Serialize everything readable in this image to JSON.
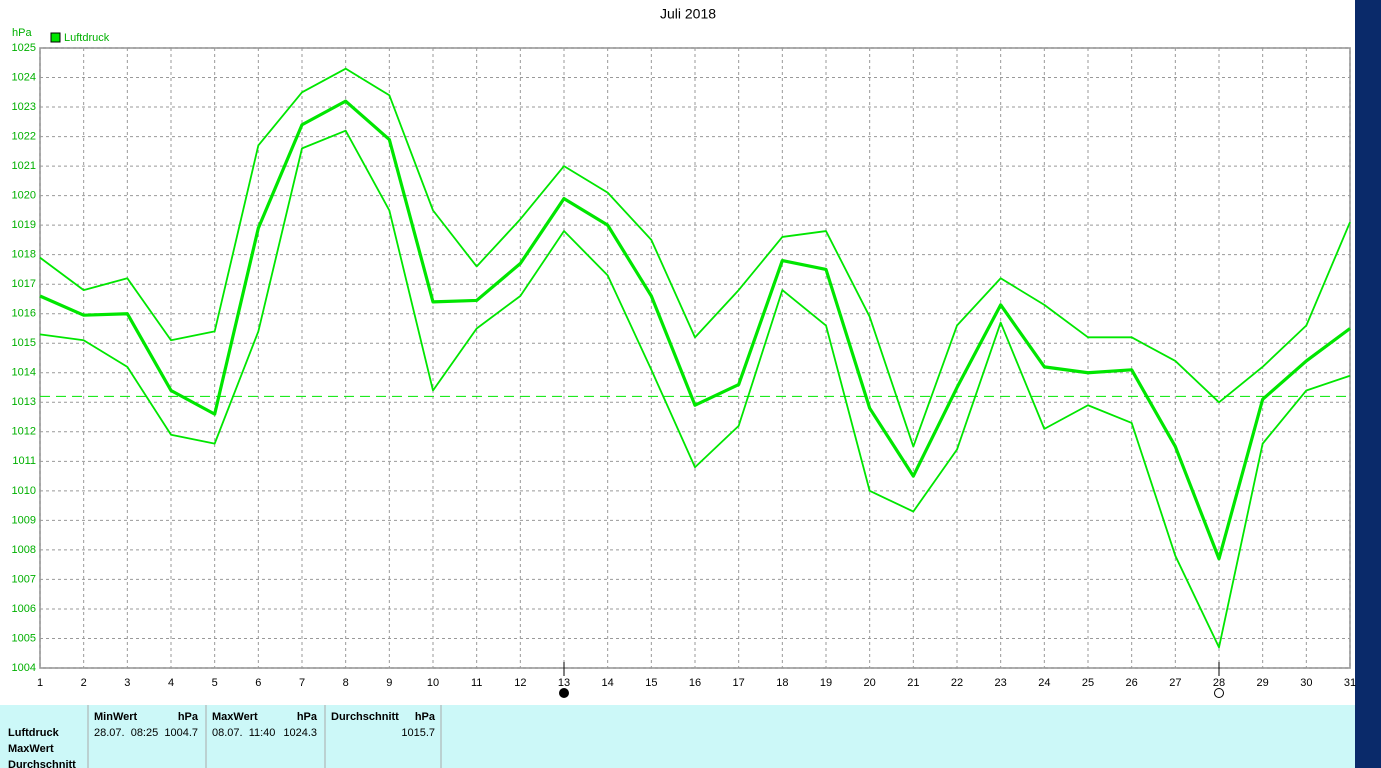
{
  "chart_data": {
    "type": "line",
    "title": "Juli 2018",
    "y_label": "hPa",
    "x": [
      1,
      2,
      3,
      4,
      5,
      6,
      7,
      8,
      9,
      10,
      11,
      12,
      13,
      14,
      15,
      16,
      17,
      18,
      19,
      20,
      21,
      22,
      23,
      24,
      25,
      26,
      27,
      28,
      29,
      30,
      31
    ],
    "xlim": [
      1,
      31
    ],
    "xticks": [
      1,
      2,
      3,
      4,
      5,
      6,
      7,
      8,
      9,
      10,
      11,
      12,
      13,
      14,
      15,
      16,
      17,
      18,
      19,
      20,
      21,
      22,
      23,
      24,
      25,
      26,
      27,
      28,
      29,
      30,
      31
    ],
    "ylim": [
      1004,
      1025
    ],
    "yticks": [
      1004,
      1005,
      1006,
      1007,
      1008,
      1009,
      1010,
      1011,
      1012,
      1013,
      1014,
      1015,
      1016,
      1017,
      1018,
      1019,
      1020,
      1021,
      1022,
      1023,
      1024,
      1025
    ],
    "grid": true,
    "series": [
      {
        "name": "Luftdruck",
        "color": "#00e600",
        "values": [
          1016.6,
          1015.95,
          1016.0,
          1013.4,
          1012.6,
          1018.9,
          1022.4,
          1023.2,
          1021.9,
          1016.4,
          1016.45,
          1017.7,
          1019.9,
          1019.0,
          1016.6,
          1012.9,
          1013.6,
          1017.8,
          1017.5,
          1012.8,
          1010.5,
          1013.5,
          1016.3,
          1014.2,
          1014.0,
          1014.1,
          1011.5,
          1007.7,
          1013.1,
          1014.4,
          1015.5
        ],
        "max": [
          1017.9,
          1016.8,
          1017.2,
          1015.1,
          1015.4,
          1021.7,
          1023.5,
          1024.3,
          1023.4,
          1019.5,
          1017.6,
          1019.2,
          1021.0,
          1020.1,
          1018.5,
          1015.2,
          1016.8,
          1018.6,
          1018.8,
          1015.9,
          1011.5,
          1015.6,
          1017.2,
          1016.3,
          1015.2,
          1015.2,
          1014.4,
          1013.0,
          1014.2,
          1015.6,
          1019.1
        ],
        "min": [
          1015.3,
          1015.1,
          1014.2,
          1011.9,
          1011.6,
          1015.4,
          1021.6,
          1022.2,
          1019.5,
          1013.4,
          1015.5,
          1016.6,
          1018.8,
          1017.3,
          1014.1,
          1010.8,
          1012.2,
          1016.8,
          1015.6,
          1010.0,
          1009.3,
          1011.4,
          1015.7,
          1012.1,
          1012.9,
          1012.3,
          1007.8,
          1004.7,
          1011.6,
          1013.4,
          1013.9
        ]
      }
    ],
    "reference_line": 1013.2,
    "moon_markers": [
      {
        "x": 13,
        "filled": true
      },
      {
        "x": 28,
        "filled": false
      }
    ]
  },
  "stats_table": {
    "row_labels": [
      "Luftdruck",
      "MaxWert",
      "Durchschnitt"
    ],
    "columns": [
      {
        "header": "MinWert",
        "unit": "hPa",
        "time": "28.07.  08:25",
        "value": "1004.7"
      },
      {
        "header": "MaxWert",
        "unit": "hPa",
        "time": "08.07.  11:40",
        "value": "1024.3"
      },
      {
        "header": "Durchschnitt",
        "unit": "hPa",
        "value": "1015.7"
      }
    ]
  }
}
